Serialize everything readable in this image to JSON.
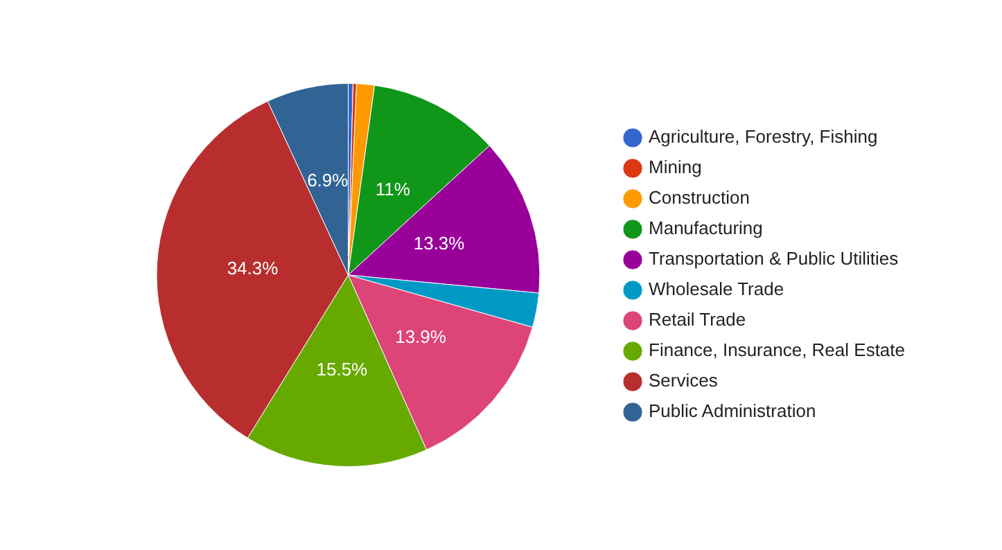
{
  "chart_data": {
    "type": "pie",
    "categories": [
      "Agriculture, Forestry, Fishing",
      "Mining",
      "Construction",
      "Manufacturing",
      "Transportation & Public Utilities",
      "Wholesale Trade",
      "Retail Trade",
      "Finance, Insurance, Real Estate",
      "Services",
      "Public Administration"
    ],
    "values": [
      0.4,
      0.3,
      1.5,
      11,
      13.3,
      2.9,
      13.9,
      15.5,
      34.3,
      6.9
    ],
    "colors": [
      "#3366cc",
      "#dc3912",
      "#ff9900",
      "#109618",
      "#990099",
      "#0099c6",
      "#dd4477",
      "#66aa00",
      "#b82e2e",
      "#316395"
    ],
    "value_labels": [
      null,
      null,
      null,
      "11%",
      "13.3%",
      null,
      "13.9%",
      "15.5%",
      "34.3%",
      "6.9%"
    ],
    "legend": "right"
  }
}
